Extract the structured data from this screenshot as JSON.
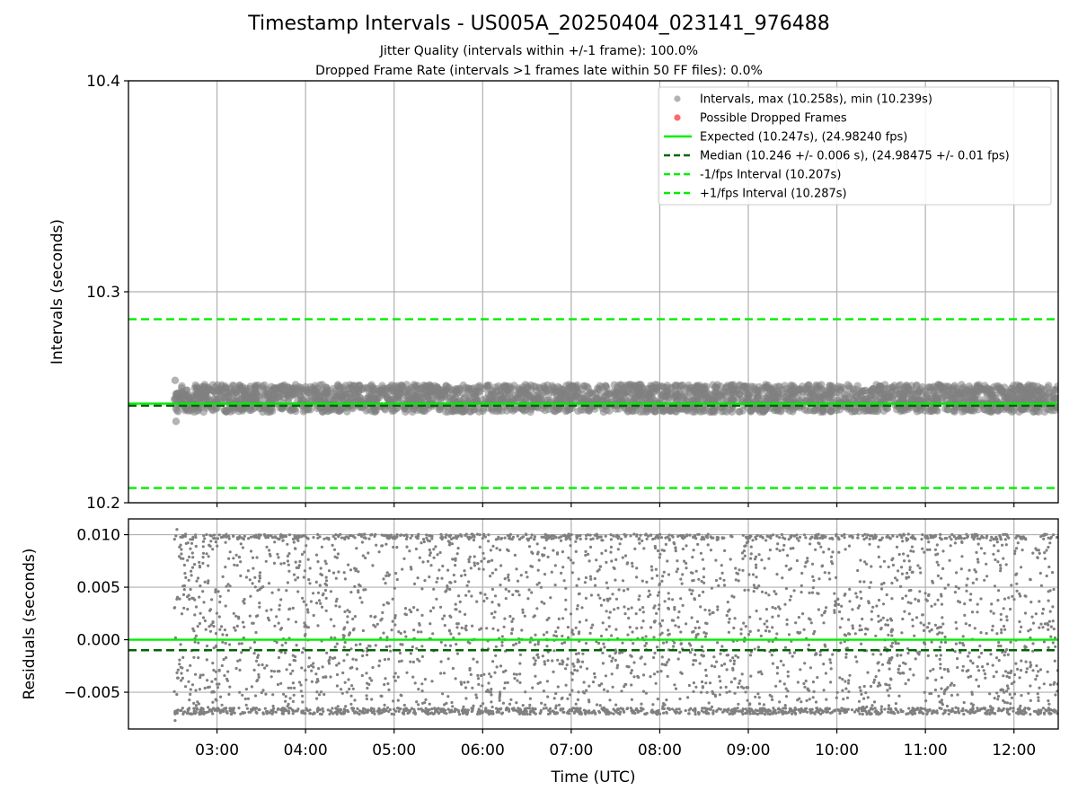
{
  "chart_data": {
    "title": "Timestamp Intervals - US005A_20250404_023141_976488",
    "subtitle_lines": [
      "Jitter Quality (intervals within +/-1 frame): 100.0%",
      "Dropped Frame Rate (intervals >1 frames late within 50 FF files): 0.0%"
    ],
    "x_axis": {
      "label": "Time (UTC)",
      "ticks": [
        "03:00",
        "04:00",
        "05:00",
        "06:00",
        "07:00",
        "08:00",
        "09:00",
        "10:00",
        "11:00",
        "12:00"
      ],
      "range": [
        "02:00",
        "12:30"
      ],
      "data_start": "02:31",
      "data_end": "12:30"
    },
    "panels": [
      {
        "type": "scatter",
        "ylabel": "Intervals (seconds)",
        "ylim": [
          10.2,
          10.4
        ],
        "yticks": [
          "10.2",
          "10.3",
          "10.4"
        ],
        "grid": true,
        "legend_position": "upper right",
        "scatter_series": [
          {
            "name": "Intervals, max (10.258s), min (10.239s)",
            "color": "#808080",
            "y_min": 10.239,
            "y_max": 10.258,
            "y_band": [
              10.243,
              10.256
            ]
          },
          {
            "name": "Possible Dropped Frames",
            "color": "#ff4444",
            "count": 0
          }
        ],
        "lines": [
          {
            "name": "Expected (10.247s), (24.98240 fps)",
            "value": 10.247,
            "color": "#00ee00",
            "style": "solid"
          },
          {
            "name": "Median (10.246 +/- 0.006 s), (24.98475 +/- 0.01 fps)",
            "value": 10.246,
            "color": "#006400",
            "style": "dashed"
          },
          {
            "name": "-1/fps Interval (10.207s)",
            "value": 10.207,
            "color": "#00ee00",
            "style": "dashed"
          },
          {
            "name": "+1/fps Interval (10.287s)",
            "value": 10.287,
            "color": "#00ee00",
            "style": "dashed"
          }
        ]
      },
      {
        "type": "scatter",
        "ylabel": "Residuals (seconds)",
        "ylim": [
          -0.0085,
          0.0115
        ],
        "yticks": [
          {
            "value": -0.005,
            "label": "−0.005"
          },
          {
            "value": 0.0,
            "label": "0.000"
          },
          {
            "value": 0.005,
            "label": "0.005"
          },
          {
            "value": 0.01,
            "label": "0.010"
          }
        ],
        "grid": true,
        "scatter_series": [
          {
            "name": "residuals",
            "color": "#808080",
            "y_min": -0.0077,
            "y_max": 0.0105,
            "y_band": [
              -0.007,
              0.01
            ]
          }
        ],
        "lines": [
          {
            "value": 0.0,
            "color": "#00ee00",
            "style": "solid"
          },
          {
            "value": -0.001,
            "color": "#006400",
            "style": "dashed"
          }
        ]
      }
    ]
  }
}
